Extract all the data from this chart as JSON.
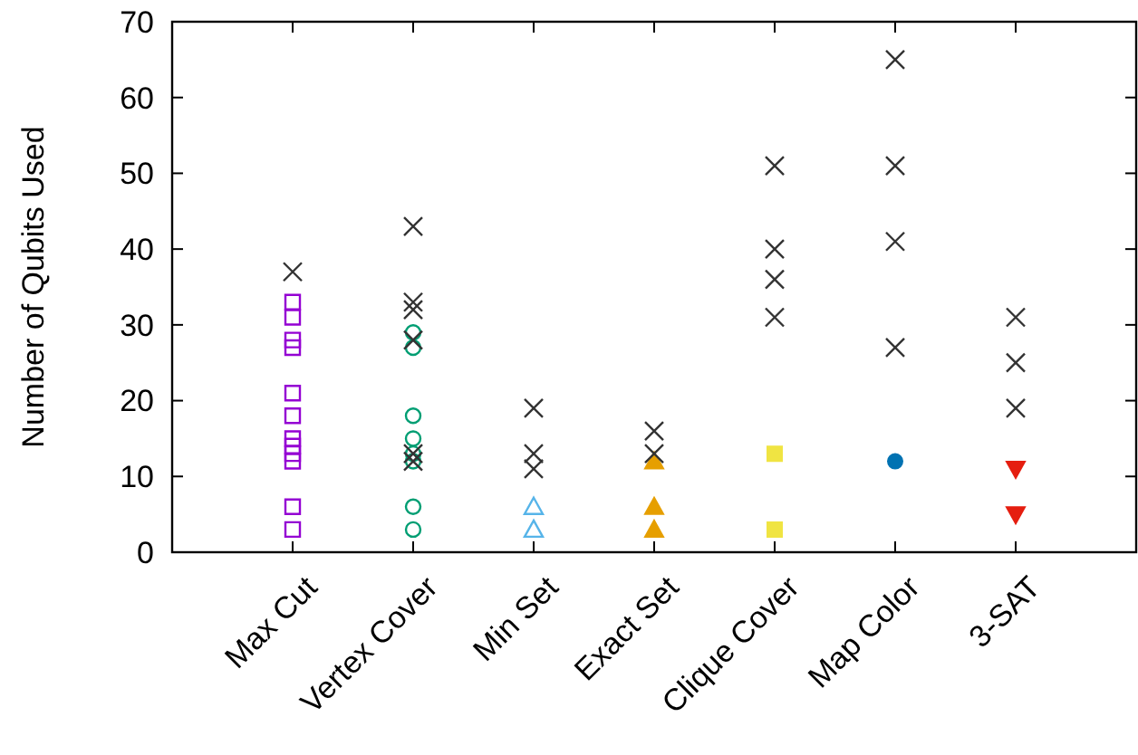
{
  "chart_data": {
    "type": "scatter",
    "ylabel": "Number of Qubits Used",
    "categories": [
      "Max Cut",
      "Vertex Cover",
      "Min Set",
      "Exact Set",
      "Clique Cover",
      "Map Color",
      "3-SAT",
      null
    ],
    "ylim": [
      0,
      70
    ],
    "yticks": [
      0,
      10,
      20,
      30,
      40,
      50,
      60,
      70
    ],
    "grid": false,
    "series": [
      {
        "color": "#9400d3",
        "marker": "square-open",
        "x": [
          "Max Cut",
          "Max Cut",
          "Max Cut",
          "Max Cut",
          "Max Cut",
          "Max Cut",
          "Max Cut",
          "Max Cut",
          "Max Cut",
          "Max Cut",
          "Max Cut",
          "Max Cut"
        ],
        "values": [
          33,
          31,
          28,
          27,
          21,
          18,
          15,
          14,
          13,
          12,
          6,
          3
        ]
      },
      {
        "color": "#009e73",
        "marker": "circle-open",
        "x": [
          "Vertex Cover",
          "Vertex Cover",
          "Vertex Cover",
          "Vertex Cover",
          "Vertex Cover",
          "Vertex Cover",
          "Vertex Cover",
          "Vertex Cover"
        ],
        "values": [
          29,
          27,
          18,
          15,
          13,
          12,
          6,
          3
        ]
      },
      {
        "color": "#56b4e9",
        "marker": "triangle-open",
        "x": [
          "Min Set",
          "Min Set"
        ],
        "values": [
          6,
          3
        ]
      },
      {
        "color": "#e69f00",
        "marker": "triangle",
        "x": [
          "Exact Set",
          "Exact Set",
          "Exact Set"
        ],
        "values": [
          12,
          6,
          3
        ]
      },
      {
        "color": "#f0e442",
        "marker": "square",
        "x": [
          "Clique Cover",
          "Clique Cover"
        ],
        "values": [
          13,
          3
        ]
      },
      {
        "color": "#0072b2",
        "marker": "circle",
        "x": [
          "Map Color"
        ],
        "values": [
          12
        ]
      },
      {
        "color": "#e51e10",
        "marker": "triangle-down",
        "x": [
          "3-SAT",
          "3-SAT"
        ],
        "values": [
          11,
          5
        ]
      },
      {
        "color": "#333333",
        "marker": "cross",
        "x": [
          "Max Cut",
          "Vertex Cover",
          "Vertex Cover",
          "Vertex Cover",
          "Vertex Cover",
          "Vertex Cover",
          "Vertex Cover",
          "Min Set",
          "Min Set",
          "Min Set",
          "Exact Set",
          "Exact Set",
          "Clique Cover",
          "Clique Cover",
          "Clique Cover",
          "Clique Cover",
          "Map Color",
          "Map Color",
          "Map Color",
          "Map Color",
          "3-SAT",
          "3-SAT",
          "3-SAT"
        ],
        "values": [
          37,
          43,
          33,
          32,
          28,
          13,
          12,
          19,
          13,
          11,
          16,
          13,
          51,
          40,
          36,
          31,
          65,
          51,
          41,
          27,
          31,
          25,
          19
        ]
      }
    ]
  }
}
